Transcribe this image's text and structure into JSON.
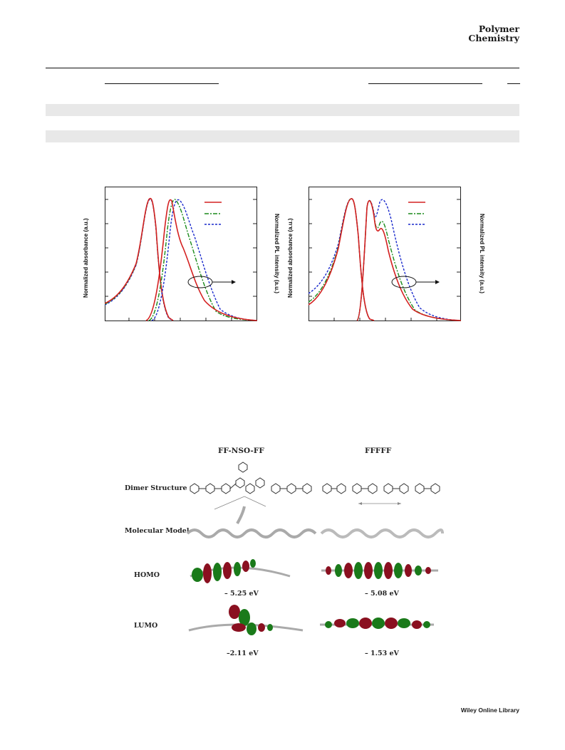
{
  "header": {
    "journal_line1": "Polymer",
    "journal_line2": "Chemistry"
  },
  "figure1": {
    "panels": [
      {
        "ylabel_left": "Normalized absorbance (a.u.)",
        "ylabel_right": "Normalized PL intensity (a.u.)",
        "legend_colors": [
          "#d42020",
          "#1a8a1a",
          "#1a2acc"
        ]
      },
      {
        "ylabel_left": "Normalized absorbance (a.u.)",
        "ylabel_right": "Normalized PL intensity (a.u.)",
        "legend_colors": [
          "#d42020",
          "#1a8a1a",
          "#1a2acc"
        ]
      }
    ]
  },
  "figure2": {
    "col1": "FF-NSO-FF",
    "col2": "FFFFF",
    "rows": [
      "Dimer Structure",
      "Molecular Model",
      "HOMO",
      "LUMO"
    ],
    "homo_col1": "– 5.25 eV",
    "homo_col2": "– 5.08 eV",
    "lumo_col1": "–2.11 eV",
    "lumo_col2": "– 1.53 eV"
  },
  "footer": {
    "text": "Wiley Online Library"
  }
}
